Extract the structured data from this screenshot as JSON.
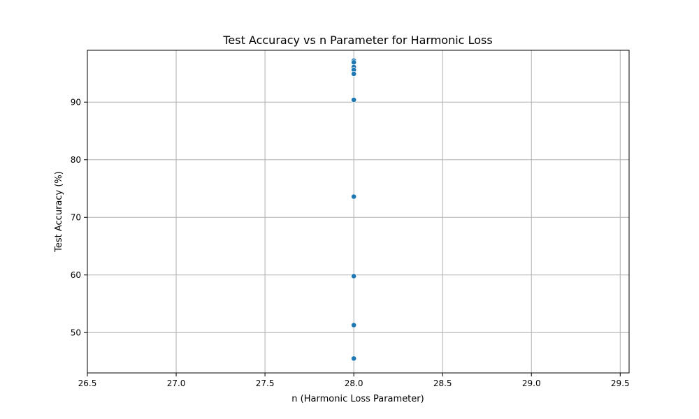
{
  "chart_data": {
    "type": "scatter",
    "title": "Test Accuracy vs n Parameter for Harmonic Loss",
    "xlabel": "n (Harmonic Loss Parameter)",
    "ylabel": "Test Accuracy (%)",
    "xlim": [
      26.5,
      29.55
    ],
    "ylim": [
      43,
      99
    ],
    "xticks": [
      26.5,
      27.0,
      27.5,
      28.0,
      28.5,
      29.0,
      29.5
    ],
    "xtick_labels": [
      "26.5",
      "27.0",
      "27.5",
      "28.0",
      "28.5",
      "29.0",
      "29.5"
    ],
    "yticks": [
      50,
      60,
      70,
      80,
      90
    ],
    "ytick_labels": [
      "50",
      "60",
      "70",
      "80",
      "90"
    ],
    "grid": true,
    "marker_color": "#1f77b4",
    "points": [
      {
        "x": 28.0,
        "y": 97.2
      },
      {
        "x": 28.0,
        "y": 96.9
      },
      {
        "x": 28.0,
        "y": 96.1
      },
      {
        "x": 28.0,
        "y": 95.6
      },
      {
        "x": 28.0,
        "y": 94.9
      },
      {
        "x": 28.0,
        "y": 90.4
      },
      {
        "x": 28.0,
        "y": 73.6
      },
      {
        "x": 28.0,
        "y": 59.8
      },
      {
        "x": 28.0,
        "y": 51.3
      },
      {
        "x": 28.0,
        "y": 45.5
      }
    ]
  }
}
